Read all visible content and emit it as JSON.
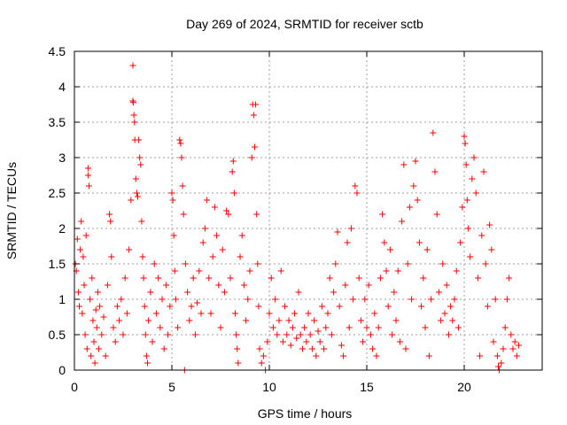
{
  "title": "Day 269 of 2024, SRMTID for receiver sctb",
  "colors": {
    "marker": "#ff0000",
    "grid": "#a0a0a0",
    "axis": "#000000",
    "background": "#ffffff"
  },
  "chart_data": {
    "type": "scatter",
    "title": "Day 269 of 2024, SRMTID for receiver sctb",
    "xlabel": "GPS time / hours",
    "ylabel": "SRMTID / TECUs",
    "xlim": [
      0,
      24
    ],
    "ylim": [
      0,
      4.5
    ],
    "x_ticks": [
      0,
      5,
      10,
      15,
      20
    ],
    "x_tick_labels": [
      "0",
      "5",
      "10",
      "15",
      "20"
    ],
    "y_ticks": [
      0,
      0.5,
      1,
      1.5,
      2,
      2.5,
      3,
      3.5,
      4,
      4.5
    ],
    "y_tick_labels": [
      "0",
      "0.5",
      "1",
      "1.5",
      "2",
      "2.5",
      "3",
      "3.5",
      "4",
      "4.5"
    ],
    "grid": true,
    "marker": "+",
    "series": [
      {
        "name": "SRMTID",
        "points": [
          [
            0.05,
            1.5
          ],
          [
            0.1,
            1.4
          ],
          [
            0.15,
            1.85
          ],
          [
            0.2,
            1.1
          ],
          [
            0.25,
            0.9
          ],
          [
            0.3,
            1.7
          ],
          [
            0.35,
            2.1
          ],
          [
            0.4,
            0.8
          ],
          [
            0.45,
            1.6
          ],
          [
            0.5,
            1.2
          ],
          [
            0.55,
            0.5
          ],
          [
            0.6,
            1.9
          ],
          [
            0.65,
            0.3
          ],
          [
            0.7,
            2.85
          ],
          [
            0.7,
            2.75
          ],
          [
            0.75,
            2.6
          ],
          [
            0.8,
            1.0
          ],
          [
            0.85,
            0.2
          ],
          [
            0.9,
            1.3
          ],
          [
            0.95,
            0.7
          ],
          [
            1.0,
            0.4
          ],
          [
            1.05,
            0.1
          ],
          [
            1.1,
            0.85
          ],
          [
            1.15,
            0.6
          ],
          [
            1.2,
            1.1
          ],
          [
            1.25,
            0.3
          ],
          [
            1.3,
            0.9
          ],
          [
            1.4,
            0.5
          ],
          [
            1.5,
            0.75
          ],
          [
            1.6,
            0.2
          ],
          [
            1.7,
            1.2
          ],
          [
            1.8,
            2.2
          ],
          [
            1.85,
            2.1
          ],
          [
            1.9,
            1.6
          ],
          [
            2.0,
            0.6
          ],
          [
            2.1,
            0.4
          ],
          [
            2.2,
            0.9
          ],
          [
            2.3,
            0.7
          ],
          [
            2.4,
            1.0
          ],
          [
            2.5,
            0.5
          ],
          [
            2.6,
            1.3
          ],
          [
            2.7,
            0.8
          ],
          [
            2.8,
            1.7
          ],
          [
            2.9,
            2.4
          ],
          [
            3.0,
            4.3
          ],
          [
            3.0,
            3.8
          ],
          [
            3.02,
            3.78
          ],
          [
            3.05,
            3.6
          ],
          [
            3.08,
            3.5
          ],
          [
            3.1,
            3.25
          ],
          [
            3.15,
            2.7
          ],
          [
            3.2,
            2.5
          ],
          [
            3.25,
            2.45
          ],
          [
            3.3,
            3.25
          ],
          [
            3.35,
            3.0
          ],
          [
            3.4,
            2.9
          ],
          [
            3.45,
            2.1
          ],
          [
            3.5,
            1.6
          ],
          [
            3.55,
            1.3
          ],
          [
            3.6,
            0.9
          ],
          [
            3.65,
            0.5
          ],
          [
            3.7,
            0.2
          ],
          [
            3.75,
            0.1
          ],
          [
            3.8,
            0.7
          ],
          [
            3.9,
            1.1
          ],
          [
            4.0,
            0.4
          ],
          [
            4.1,
            1.5
          ],
          [
            4.2,
            0.8
          ],
          [
            4.3,
            1.3
          ],
          [
            4.4,
            0.6
          ],
          [
            4.5,
            1.0
          ],
          [
            4.6,
            0.3
          ],
          [
            4.7,
            1.2
          ],
          [
            4.8,
            0.5
          ],
          [
            4.9,
            0.9
          ],
          [
            5.0,
            2.5
          ],
          [
            5.05,
            2.4
          ],
          [
            5.1,
            1.9
          ],
          [
            5.15,
            1.4
          ],
          [
            5.2,
            1.0
          ],
          [
            5.3,
            0.6
          ],
          [
            5.4,
            3.25
          ],
          [
            5.45,
            3.2
          ],
          [
            5.5,
            3.0
          ],
          [
            5.55,
            2.6
          ],
          [
            5.6,
            2.2
          ],
          [
            5.65,
            0.0
          ],
          [
            5.7,
            1.5
          ],
          [
            5.8,
            1.1
          ],
          [
            5.9,
            0.7
          ],
          [
            6.0,
            0.9
          ],
          [
            6.1,
            1.3
          ],
          [
            6.2,
            0.5
          ],
          [
            6.3,
            0.95
          ],
          [
            6.4,
            1.4
          ],
          [
            6.5,
            0.8
          ],
          [
            6.6,
            1.8
          ],
          [
            6.7,
            2.0
          ],
          [
            6.8,
            2.4
          ],
          [
            6.9,
            1.3
          ],
          [
            7.0,
            0.8
          ],
          [
            7.1,
            1.6
          ],
          [
            7.2,
            2.3
          ],
          [
            7.3,
            1.9
          ],
          [
            7.4,
            1.2
          ],
          [
            7.5,
            0.6
          ],
          [
            7.6,
            1.7
          ],
          [
            7.7,
            1.1
          ],
          [
            7.8,
            2.25
          ],
          [
            7.9,
            2.2
          ],
          [
            8.0,
            1.3
          ],
          [
            8.1,
            2.8
          ],
          [
            8.15,
            2.95
          ],
          [
            8.2,
            2.5
          ],
          [
            8.25,
            0.8
          ],
          [
            8.3,
            0.5
          ],
          [
            8.35,
            0.3
          ],
          [
            8.4,
            0.1
          ],
          [
            8.5,
            1.6
          ],
          [
            8.6,
            1.9
          ],
          [
            8.7,
            1.2
          ],
          [
            8.8,
            0.7
          ],
          [
            8.9,
            1.0
          ],
          [
            9.0,
            1.4
          ],
          [
            9.1,
            3.0
          ],
          [
            9.15,
            3.75
          ],
          [
            9.2,
            3.6
          ],
          [
            9.25,
            3.15
          ],
          [
            9.3,
            3.75
          ],
          [
            9.35,
            2.2
          ],
          [
            9.4,
            1.5
          ],
          [
            9.45,
            0.9
          ],
          [
            9.5,
            0.3
          ],
          [
            9.6,
            0.1
          ],
          [
            9.7,
            0.2
          ],
          [
            9.8,
            0.0
          ],
          [
            9.9,
            0.4
          ],
          [
            10.0,
            0.8
          ],
          [
            10.1,
            1.3
          ],
          [
            10.2,
            0.6
          ],
          [
            10.3,
            1.0
          ],
          [
            10.4,
            0.5
          ],
          [
            10.5,
            0.7
          ],
          [
            10.6,
            1.4
          ],
          [
            10.7,
            0.4
          ],
          [
            10.8,
            0.9
          ],
          [
            10.9,
            0.5
          ],
          [
            11.0,
            0.7
          ],
          [
            11.1,
            0.35
          ],
          [
            11.2,
            0.6
          ],
          [
            11.3,
            0.8
          ],
          [
            11.4,
            0.45
          ],
          [
            11.5,
            1.1
          ],
          [
            11.6,
            0.5
          ],
          [
            11.7,
            0.3
          ],
          [
            11.8,
            0.6
          ],
          [
            11.9,
            0.4
          ],
          [
            12.0,
            0.8
          ],
          [
            12.1,
            0.5
          ],
          [
            12.2,
            0.3
          ],
          [
            12.3,
            0.7
          ],
          [
            12.4,
            0.2
          ],
          [
            12.5,
            0.55
          ],
          [
            12.6,
            0.4
          ],
          [
            12.7,
            0.9
          ],
          [
            12.8,
            0.3
          ],
          [
            12.9,
            0.6
          ],
          [
            13.0,
            0.8
          ],
          [
            13.1,
            1.3
          ],
          [
            13.2,
            0.5
          ],
          [
            13.3,
            1.1
          ],
          [
            13.4,
            1.5
          ],
          [
            13.5,
            1.95
          ],
          [
            13.6,
            0.9
          ],
          [
            13.7,
            0.35
          ],
          [
            13.8,
            0.2
          ],
          [
            13.9,
            1.2
          ],
          [
            14.0,
            1.8
          ],
          [
            14.1,
            0.6
          ],
          [
            14.2,
            2.0
          ],
          [
            14.3,
            1.0
          ],
          [
            14.4,
            2.6
          ],
          [
            14.5,
            2.5
          ],
          [
            14.6,
            1.3
          ],
          [
            14.7,
            0.7
          ],
          [
            14.8,
            0.4
          ],
          [
            14.9,
            1.0
          ],
          [
            15.0,
            0.6
          ],
          [
            15.1,
            1.2
          ],
          [
            15.2,
            0.5
          ],
          [
            15.3,
            0.3
          ],
          [
            15.4,
            0.8
          ],
          [
            15.5,
            0.2
          ],
          [
            15.6,
            0.6
          ],
          [
            15.7,
            1.3
          ],
          [
            15.8,
            2.2
          ],
          [
            15.9,
            1.8
          ],
          [
            16.0,
            1.4
          ],
          [
            16.1,
            0.9
          ],
          [
            16.2,
            1.7
          ],
          [
            16.3,
            0.5
          ],
          [
            16.4,
            1.1
          ],
          [
            16.5,
            0.7
          ],
          [
            16.6,
            1.4
          ],
          [
            16.7,
            0.4
          ],
          [
            16.8,
            2.1
          ],
          [
            16.9,
            2.9
          ],
          [
            17.0,
            0.3
          ],
          [
            17.1,
            1.5
          ],
          [
            17.2,
            2.3
          ],
          [
            17.3,
            1.0
          ],
          [
            17.4,
            2.6
          ],
          [
            17.5,
            2.95
          ],
          [
            17.6,
            2.4
          ],
          [
            17.7,
            1.8
          ],
          [
            17.8,
            0.9
          ],
          [
            17.9,
            1.3
          ],
          [
            18.0,
            0.6
          ],
          [
            18.1,
            1.7
          ],
          [
            18.2,
            0.2
          ],
          [
            18.3,
            1.0
          ],
          [
            18.4,
            3.35
          ],
          [
            18.5,
            2.8
          ],
          [
            18.6,
            2.2
          ],
          [
            18.7,
            1.1
          ],
          [
            18.8,
            0.7
          ],
          [
            18.9,
            1.5
          ],
          [
            19.0,
            0.8
          ],
          [
            19.1,
            1.2
          ],
          [
            19.2,
            0.5
          ],
          [
            19.3,
            0.9
          ],
          [
            19.4,
            0.7
          ],
          [
            19.5,
            1.0
          ],
          [
            19.6,
            1.4
          ],
          [
            19.7,
            0.6
          ],
          [
            19.8,
            1.8
          ],
          [
            19.9,
            2.3
          ],
          [
            20.0,
            3.3
          ],
          [
            20.05,
            3.2
          ],
          [
            20.1,
            2.9
          ],
          [
            20.15,
            2.4
          ],
          [
            20.2,
            2.0
          ],
          [
            20.3,
            1.6
          ],
          [
            20.4,
            2.7
          ],
          [
            20.5,
            3.0
          ],
          [
            20.6,
            2.5
          ],
          [
            20.7,
            1.3
          ],
          [
            20.8,
            0.2
          ],
          [
            20.9,
            1.9
          ],
          [
            21.0,
            2.8
          ],
          [
            21.1,
            1.5
          ],
          [
            21.2,
            0.9
          ],
          [
            21.3,
            2.05
          ],
          [
            21.4,
            1.7
          ],
          [
            21.5,
            0.4
          ],
          [
            21.6,
            1.0
          ],
          [
            21.7,
            0.2
          ],
          [
            21.75,
            0.05
          ],
          [
            21.8,
            0.0
          ],
          [
            21.9,
            0.1
          ],
          [
            22.0,
            0.3
          ],
          [
            22.1,
            0.6
          ],
          [
            22.2,
            1.0
          ],
          [
            22.3,
            1.3
          ],
          [
            22.4,
            0.5
          ],
          [
            22.5,
            0.3
          ],
          [
            22.6,
            0.4
          ],
          [
            22.7,
            0.2
          ],
          [
            22.8,
            0.35
          ]
        ]
      }
    ]
  }
}
